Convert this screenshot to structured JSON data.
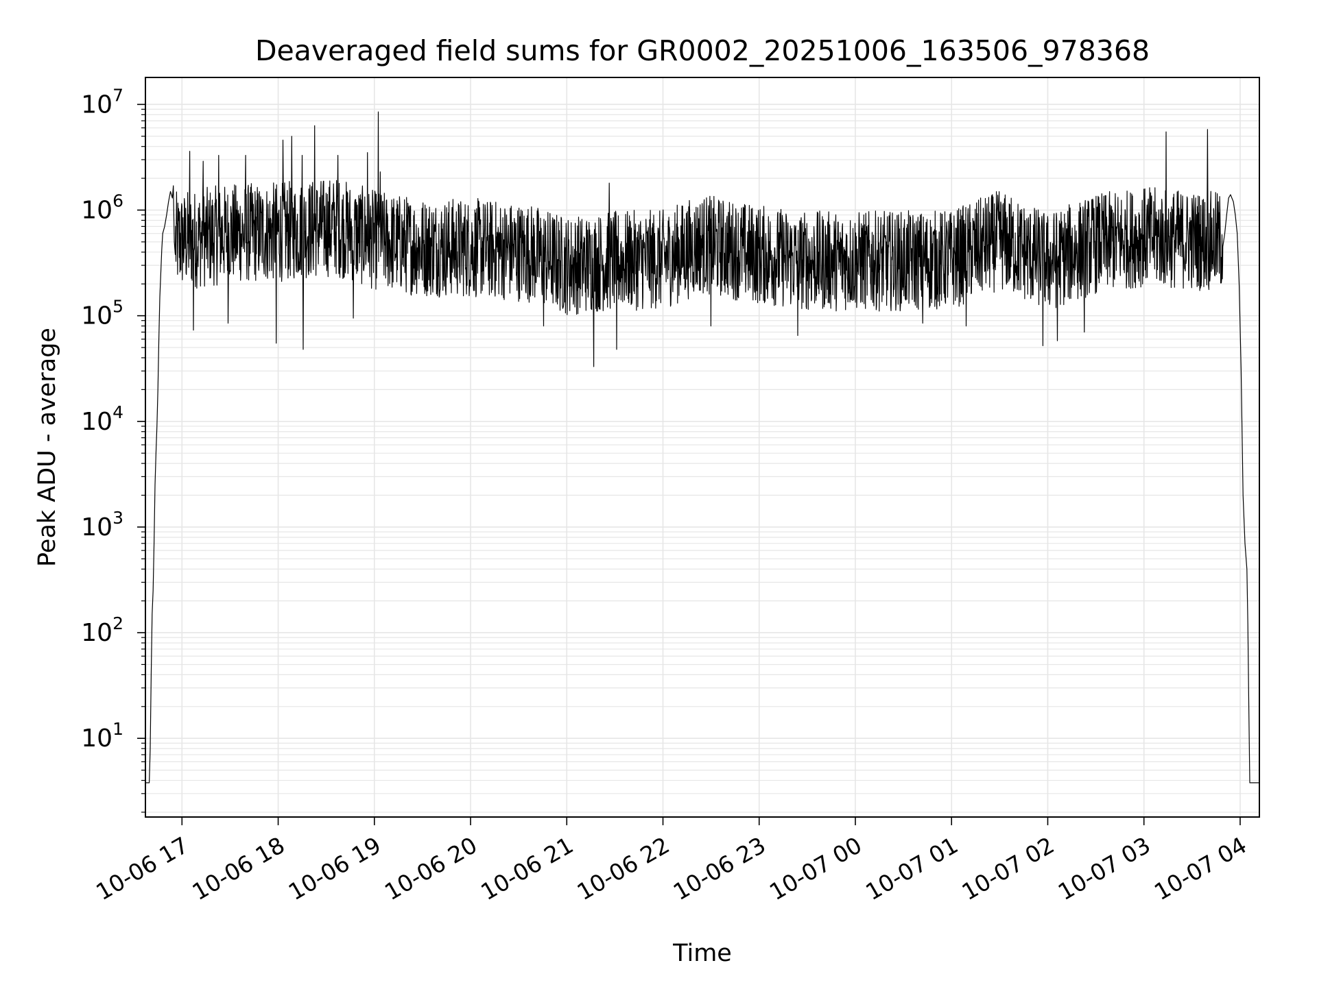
{
  "chart_data": {
    "type": "line",
    "title": "Deaveraged field sums for GR0002_20251006_163506_978368",
    "xlabel": "Time",
    "ylabel": "Peak ADU - average",
    "yscale": "log",
    "ylim": [
      1.8,
      18000000
    ],
    "xlim_hours": [
      16.62,
      28.2
    ],
    "grid": true,
    "line_color": "#000000",
    "grid_color": "#e6e6e6",
    "x_ticks": [
      {
        "hour": 17,
        "label": "10-06 17"
      },
      {
        "hour": 18,
        "label": "10-06 18"
      },
      {
        "hour": 19,
        "label": "10-06 19"
      },
      {
        "hour": 20,
        "label": "10-06 20"
      },
      {
        "hour": 21,
        "label": "10-06 21"
      },
      {
        "hour": 22,
        "label": "10-06 22"
      },
      {
        "hour": 23,
        "label": "10-06 23"
      },
      {
        "hour": 24,
        "label": "10-07 00"
      },
      {
        "hour": 25,
        "label": "10-07 01"
      },
      {
        "hour": 26,
        "label": "10-07 02"
      },
      {
        "hour": 27,
        "label": "10-07 03"
      },
      {
        "hour": 28,
        "label": "10-07 04"
      }
    ],
    "y_ticks": [
      {
        "exp": 1,
        "base": "10",
        "sup": "1"
      },
      {
        "exp": 2,
        "base": "10",
        "sup": "2"
      },
      {
        "exp": 3,
        "base": "10",
        "sup": "3"
      },
      {
        "exp": 4,
        "base": "10",
        "sup": "4"
      },
      {
        "exp": 5,
        "base": "10",
        "sup": "5"
      },
      {
        "exp": 6,
        "base": "10",
        "sup": "6"
      },
      {
        "exp": 7,
        "base": "10",
        "sup": "7"
      }
    ],
    "series": [
      {
        "name": "Peak ADU - average",
        "points": [
          [
            16.62,
            3.8
          ],
          [
            16.64,
            3.8
          ],
          [
            16.66,
            3.8
          ],
          [
            16.67,
            8
          ],
          [
            16.68,
            40
          ],
          [
            16.69,
            150
          ],
          [
            16.7,
            250
          ],
          [
            16.71,
            700
          ],
          [
            16.72,
            2500
          ],
          [
            16.73,
            5000
          ],
          [
            16.74,
            9000
          ],
          [
            16.75,
            20000
          ],
          [
            16.76,
            60000
          ],
          [
            16.77,
            150000
          ],
          [
            16.78,
            250000
          ],
          [
            16.79,
            420000
          ],
          [
            16.8,
            600000
          ],
          [
            16.82,
            700000
          ],
          [
            16.84,
            900000
          ],
          [
            16.86,
            1200000
          ],
          [
            16.88,
            1500000
          ],
          [
            16.9,
            1300000
          ],
          [
            16.91,
            1700000
          ],
          [
            16.92,
            500000
          ],
          [
            16.93,
            380000
          ],
          [
            27.82,
            450000
          ],
          [
            27.84,
            600000
          ],
          [
            27.86,
            900000
          ],
          [
            27.88,
            1300000
          ],
          [
            27.9,
            1400000
          ],
          [
            27.93,
            1200000
          ],
          [
            27.95,
            900000
          ],
          [
            27.97,
            600000
          ],
          [
            27.99,
            200000
          ],
          [
            28.01,
            30000
          ],
          [
            28.03,
            2000
          ],
          [
            28.05,
            700
          ],
          [
            28.07,
            400
          ],
          [
            28.08,
            120
          ],
          [
            28.09,
            20
          ],
          [
            28.1,
            3.8
          ],
          [
            28.2,
            3.8
          ]
        ],
        "noise_segment": {
          "start_hour": 16.93,
          "end_hour": 27.82,
          "baseline_by_hour": [
            [
              16.93,
              500000
            ],
            [
              17.5,
              600000
            ],
            [
              18.0,
              620000
            ],
            [
              18.6,
              700000
            ],
            [
              19.0,
              520000
            ],
            [
              19.5,
              450000
            ],
            [
              20.0,
              440000
            ],
            [
              20.6,
              400000
            ],
            [
              21.0,
              300000
            ],
            [
              21.5,
              330000
            ],
            [
              22.0,
              340000
            ],
            [
              22.4,
              480000
            ],
            [
              23.0,
              380000
            ],
            [
              23.5,
              330000
            ],
            [
              24.0,
              330000
            ],
            [
              24.5,
              330000
            ],
            [
              25.0,
              340000
            ],
            [
              25.5,
              520000
            ],
            [
              26.0,
              320000
            ],
            [
              26.5,
              480000
            ],
            [
              27.0,
              560000
            ],
            [
              27.5,
              520000
            ],
            [
              27.82,
              500000
            ]
          ],
          "spikes": [
            [
              17.08,
              3600000
            ],
            [
              17.22,
              2900000
            ],
            [
              17.38,
              3300000
            ],
            [
              17.66,
              3300000
            ],
            [
              18.05,
              4600000
            ],
            [
              18.14,
              5000000
            ],
            [
              18.25,
              3300000
            ],
            [
              18.38,
              6300000
            ],
            [
              18.62,
              3300000
            ],
            [
              18.93,
              3500000
            ],
            [
              19.04,
              8500000
            ],
            [
              19.06,
              2300000
            ],
            [
              21.44,
              1800000
            ],
            [
              27.23,
              5500000
            ],
            [
              27.66,
              5800000
            ],
            [
              27.83,
              2800000
            ]
          ],
          "dips": [
            [
              17.12,
              73000
            ],
            [
              17.48,
              85000
            ],
            [
              17.98,
              55000
            ],
            [
              18.26,
              48000
            ],
            [
              18.78,
              95000
            ],
            [
              20.76,
              80000
            ],
            [
              21.28,
              33000
            ],
            [
              21.52,
              48000
            ],
            [
              22.5,
              80000
            ],
            [
              23.4,
              65000
            ],
            [
              24.7,
              85000
            ],
            [
              25.15,
              80000
            ],
            [
              25.95,
              52000
            ],
            [
              26.1,
              58000
            ],
            [
              26.38,
              70000
            ]
          ]
        }
      }
    ]
  }
}
